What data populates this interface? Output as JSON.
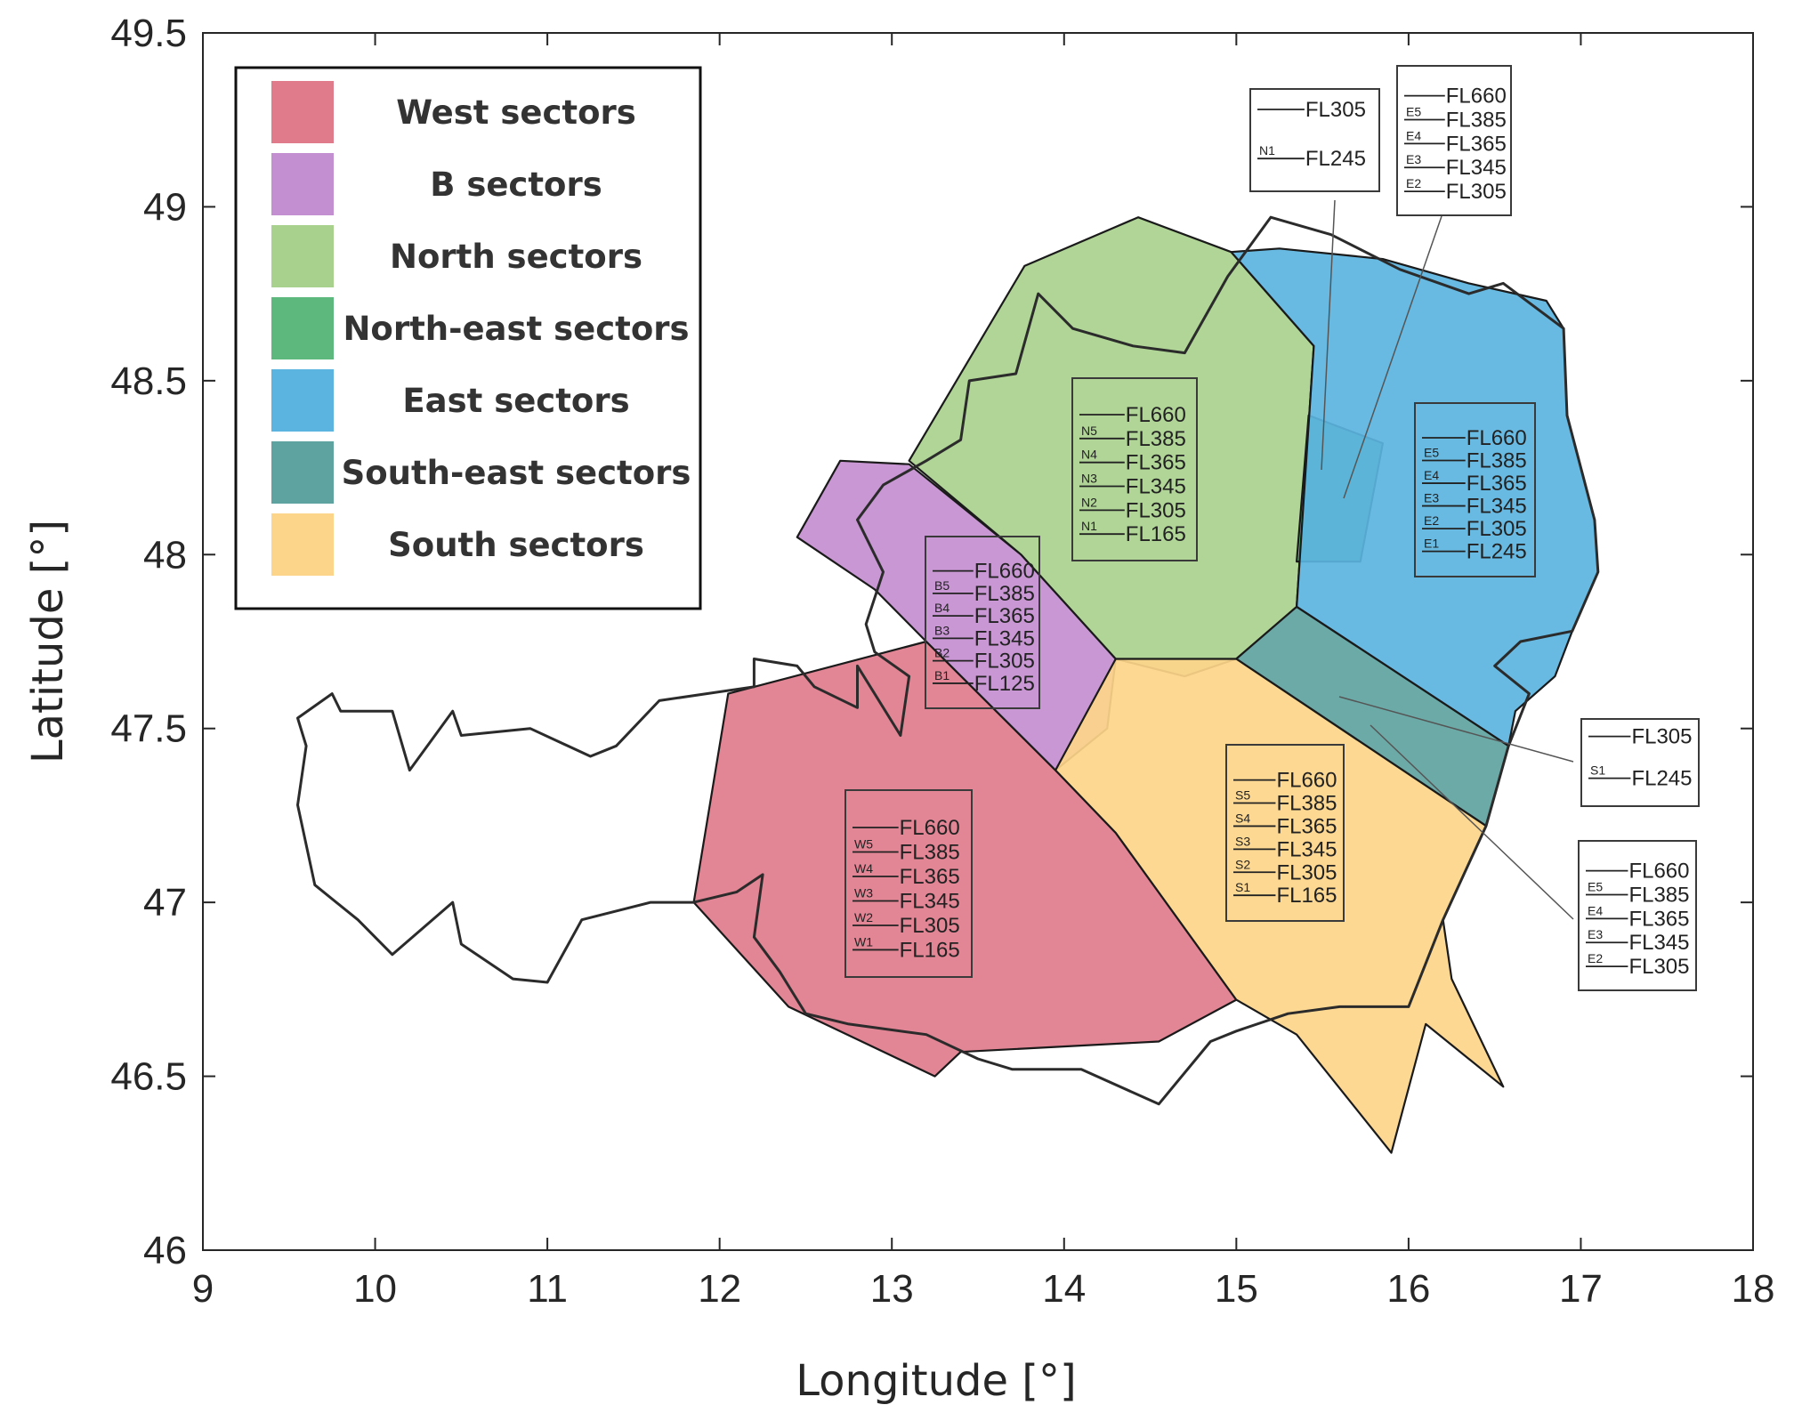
{
  "axes": {
    "xlabel": "Longitude [°]",
    "ylabel": "Latitude [°]",
    "xlim": [
      9,
      18
    ],
    "ylim": [
      46,
      49.5
    ],
    "xticks": [
      "9",
      "10",
      "11",
      "12",
      "13",
      "14",
      "15",
      "16",
      "17",
      "18"
    ],
    "yticks": [
      "46",
      "46.5",
      "47",
      "47.5",
      "48",
      "48.5",
      "49",
      "49.5"
    ]
  },
  "legend": {
    "placement": "top-left",
    "items": [
      {
        "label": "West sectors",
        "color": "#e07b8c"
      },
      {
        "label": "B sectors",
        "color": "#c48fd0"
      },
      {
        "label": "North sectors",
        "color": "#a9d18e"
      },
      {
        "label": "North-east sectors",
        "color": "#5cb87c"
      },
      {
        "label": "East sectors",
        "color": "#5bb4e0"
      },
      {
        "label": "South-east sectors",
        "color": "#5fa3a0"
      },
      {
        "label": "South sectors",
        "color": "#fdd58a"
      }
    ]
  },
  "sectors": [
    {
      "name": "west",
      "color": "#e07b8c",
      "points": [
        [
          11.85,
          47.0
        ],
        [
          12.05,
          47.6
        ],
        [
          13.2,
          47.75
        ],
        [
          13.95,
          47.38
        ],
        [
          14.3,
          47.2
        ],
        [
          15.0,
          46.72
        ],
        [
          14.55,
          46.6
        ],
        [
          13.4,
          46.57
        ],
        [
          13.25,
          46.5
        ],
        [
          12.4,
          46.7
        ]
      ]
    },
    {
      "name": "b",
      "color": "#c48fd0",
      "points": [
        [
          12.45,
          48.05
        ],
        [
          12.7,
          48.27
        ],
        [
          13.1,
          48.26
        ],
        [
          13.75,
          48.0
        ],
        [
          14.3,
          47.7
        ],
        [
          14.25,
          47.5
        ],
        [
          13.95,
          47.38
        ],
        [
          13.2,
          47.75
        ],
        [
          12.9,
          47.9
        ]
      ]
    },
    {
      "name": "north",
      "color": "#a9d18e",
      "points": [
        [
          13.1,
          48.27
        ],
        [
          13.77,
          48.83
        ],
        [
          14.43,
          48.97
        ],
        [
          14.97,
          48.87
        ],
        [
          15.45,
          48.6
        ],
        [
          15.35,
          47.85
        ],
        [
          15.0,
          47.7
        ],
        [
          14.7,
          47.65
        ],
        [
          14.3,
          47.7
        ],
        [
          13.75,
          48.0
        ]
      ]
    },
    {
      "name": "north-east",
      "color": "#5cb87c",
      "points": [
        [
          15.42,
          48.4
        ],
        [
          15.85,
          48.32
        ],
        [
          15.72,
          47.98
        ],
        [
          15.35,
          47.98
        ]
      ]
    },
    {
      "name": "east",
      "color": "#5bb4e0",
      "points": [
        [
          14.97,
          48.87
        ],
        [
          15.25,
          48.88
        ],
        [
          15.85,
          48.85
        ],
        [
          16.35,
          48.78
        ],
        [
          16.8,
          48.73
        ],
        [
          16.9,
          48.65
        ],
        [
          16.92,
          48.4
        ],
        [
          17.08,
          48.1
        ],
        [
          17.1,
          47.95
        ],
        [
          16.95,
          47.78
        ],
        [
          16.85,
          47.65
        ],
        [
          16.62,
          47.55
        ],
        [
          16.58,
          47.45
        ],
        [
          15.35,
          47.85
        ],
        [
          15.45,
          48.6
        ]
      ]
    },
    {
      "name": "south-east",
      "color": "#5fa3a0",
      "points": [
        [
          15.0,
          47.7
        ],
        [
          15.35,
          47.85
        ],
        [
          16.58,
          47.45
        ],
        [
          16.45,
          47.22
        ]
      ]
    },
    {
      "name": "south",
      "color": "#fdd58a",
      "points": [
        [
          13.95,
          47.38
        ],
        [
          14.3,
          47.7
        ],
        [
          15.0,
          47.7
        ],
        [
          16.45,
          47.22
        ],
        [
          16.2,
          46.95
        ],
        [
          16.25,
          46.78
        ],
        [
          16.55,
          46.47
        ],
        [
          16.1,
          46.65
        ],
        [
          15.9,
          46.28
        ],
        [
          15.35,
          46.62
        ],
        [
          15.0,
          46.72
        ],
        [
          14.3,
          47.2
        ]
      ]
    }
  ],
  "border": {
    "points": [
      [
        9.55,
        47.53
      ],
      [
        9.75,
        47.6
      ],
      [
        9.8,
        47.55
      ],
      [
        10.1,
        47.55
      ],
      [
        10.2,
        47.38
      ],
      [
        10.45,
        47.55
      ],
      [
        10.5,
        47.48
      ],
      [
        10.9,
        47.5
      ],
      [
        11.25,
        47.42
      ],
      [
        11.4,
        47.45
      ],
      [
        11.65,
        47.58
      ],
      [
        12.2,
        47.62
      ],
      [
        12.2,
        47.7
      ],
      [
        12.45,
        47.68
      ],
      [
        12.55,
        47.62
      ],
      [
        12.8,
        47.56
      ],
      [
        12.8,
        47.68
      ],
      [
        13.05,
        47.48
      ],
      [
        13.1,
        47.65
      ],
      [
        12.9,
        47.72
      ],
      [
        12.85,
        47.8
      ],
      [
        12.95,
        47.95
      ],
      [
        12.8,
        48.1
      ],
      [
        12.95,
        48.2
      ],
      [
        13.2,
        48.27
      ],
      [
        13.4,
        48.33
      ],
      [
        13.45,
        48.5
      ],
      [
        13.72,
        48.52
      ],
      [
        13.85,
        48.75
      ],
      [
        14.05,
        48.65
      ],
      [
        14.4,
        48.6
      ],
      [
        14.7,
        48.58
      ],
      [
        14.95,
        48.8
      ],
      [
        15.2,
        48.97
      ],
      [
        15.55,
        48.92
      ],
      [
        15.95,
        48.82
      ],
      [
        16.35,
        48.75
      ],
      [
        16.55,
        48.78
      ],
      [
        16.9,
        48.65
      ],
      [
        16.92,
        48.4
      ],
      [
        17.08,
        48.1
      ],
      [
        17.1,
        47.95
      ],
      [
        16.95,
        47.78
      ],
      [
        16.65,
        47.75
      ],
      [
        16.5,
        47.68
      ],
      [
        16.7,
        47.6
      ],
      [
        16.58,
        47.45
      ],
      [
        16.45,
        47.22
      ],
      [
        16.2,
        46.95
      ],
      [
        16.0,
        46.7
      ],
      [
        15.6,
        46.7
      ],
      [
        15.3,
        46.68
      ],
      [
        15.0,
        46.63
      ],
      [
        14.85,
        46.6
      ],
      [
        14.55,
        46.42
      ],
      [
        14.1,
        46.52
      ],
      [
        13.7,
        46.52
      ],
      [
        13.5,
        46.55
      ],
      [
        13.2,
        46.62
      ],
      [
        12.75,
        46.65
      ],
      [
        12.5,
        46.68
      ],
      [
        12.35,
        46.8
      ],
      [
        12.2,
        46.9
      ],
      [
        12.25,
        47.08
      ],
      [
        12.1,
        47.03
      ],
      [
        11.85,
        47.0
      ],
      [
        11.6,
        47.0
      ],
      [
        11.2,
        46.95
      ],
      [
        11.0,
        46.77
      ],
      [
        10.8,
        46.78
      ],
      [
        10.5,
        46.88
      ],
      [
        10.45,
        47.0
      ],
      [
        10.1,
        46.85
      ],
      [
        9.9,
        46.95
      ],
      [
        9.65,
        47.05
      ],
      [
        9.55,
        47.28
      ],
      [
        9.6,
        47.45
      ]
    ]
  },
  "labels": {
    "north_in": {
      "sectors": [
        "N5",
        "N4",
        "N3",
        "N2",
        "N1"
      ],
      "levels": [
        "FL660",
        "FL385",
        "FL365",
        "FL345",
        "FL305",
        "FL165"
      ]
    },
    "b_in": {
      "sectors": [
        "B5",
        "B4",
        "B3",
        "B2",
        "B1"
      ],
      "levels": [
        "FL660",
        "FL385",
        "FL365",
        "FL345",
        "FL305",
        "FL125"
      ]
    },
    "east_in": {
      "sectors": [
        "E5",
        "E4",
        "E3",
        "E2",
        "E1"
      ],
      "levels": [
        "FL660",
        "FL385",
        "FL365",
        "FL345",
        "FL305",
        "FL245"
      ]
    },
    "south_in": {
      "sectors": [
        "S5",
        "S4",
        "S3",
        "S2",
        "S1"
      ],
      "levels": [
        "FL660",
        "FL385",
        "FL365",
        "FL345",
        "FL305",
        "FL165"
      ]
    },
    "west_in": {
      "sectors": [
        "W5",
        "W4",
        "W3",
        "W2",
        "W1"
      ],
      "levels": [
        "FL660",
        "FL385",
        "FL365",
        "FL345",
        "FL305",
        "FL165"
      ]
    },
    "ne_n1_out": {
      "sectors": [
        "N1"
      ],
      "levels": [
        "FL305",
        "FL245"
      ]
    },
    "ne_e_out": {
      "sectors": [
        "E5",
        "E4",
        "E3",
        "E2"
      ],
      "levels": [
        "FL660",
        "FL385",
        "FL365",
        "FL345",
        "FL305"
      ]
    },
    "se_s1_out": {
      "sectors": [
        "S1"
      ],
      "levels": [
        "FL305",
        "FL245"
      ]
    },
    "se_e_out": {
      "sectors": [
        "E5",
        "E4",
        "E3",
        "E2"
      ],
      "levels": [
        "FL660",
        "FL385",
        "FL365",
        "FL345",
        "FL305"
      ]
    }
  }
}
